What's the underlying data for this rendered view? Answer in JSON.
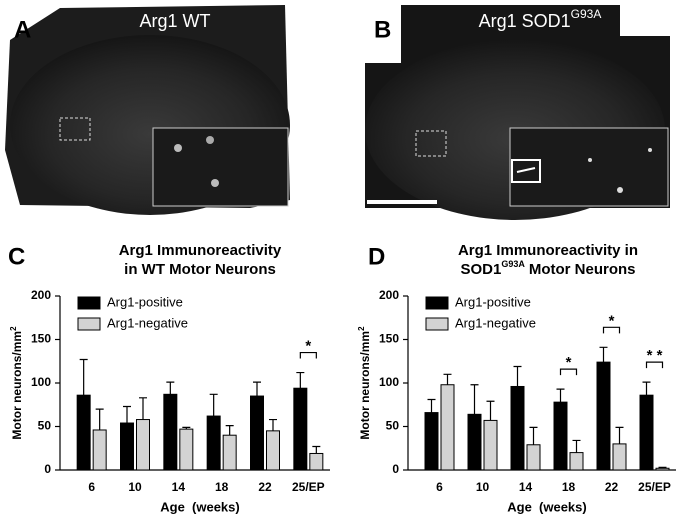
{
  "images": [
    {
      "label": "A",
      "caption": "Arg1 WT"
    },
    {
      "label": "B",
      "caption": "Arg1 SOD1",
      "caption_sup": "G93A"
    }
  ],
  "chart_data": [
    {
      "type": "bar",
      "panel": "C",
      "title": [
        [
          "Arg1 Immunoreactivity"
        ],
        [
          "in WT Motor Neurons"
        ]
      ],
      "xlabel": "Age  (weeks)",
      "ylabel": "Motor neurons/mm",
      "ylabel_sup": "2",
      "categories": [
        "6",
        "10",
        "14",
        "18",
        "22",
        "25/EP"
      ],
      "series": [
        {
          "name": "Arg1-positive",
          "color": "#000000",
          "values": [
            86,
            54,
            87,
            62,
            85,
            94
          ],
          "errors": [
            41,
            19,
            14,
            25,
            16,
            18
          ]
        },
        {
          "name": "Arg1-negative",
          "color": "#d3d3d3",
          "values": [
            46,
            58,
            47,
            40,
            45,
            19
          ],
          "errors": [
            24,
            25,
            2,
            11,
            13,
            8
          ]
        }
      ],
      "ylim": [
        0,
        200
      ],
      "yticks": [
        0,
        50,
        100,
        150,
        200
      ],
      "legend": "upper left",
      "annotations": [
        {
          "category": "25/EP",
          "text": "*"
        }
      ]
    },
    {
      "type": "bar",
      "panel": "D",
      "title": [
        [
          "Arg1 Immunoreactivity in"
        ],
        [
          "SOD1",
          {
            "text": "G93A",
            "sup": true
          },
          "Motor Neurons"
        ]
      ],
      "xlabel": "Age  (weeks)",
      "ylabel": "Motor neurons/mm",
      "ylabel_sup": "2",
      "categories": [
        "6",
        "10",
        "14",
        "18",
        "22",
        "25/EP"
      ],
      "series": [
        {
          "name": "Arg1-positive",
          "color": "#000000",
          "values": [
            66,
            64,
            96,
            78,
            124,
            86
          ],
          "errors": [
            15,
            34,
            23,
            15,
            17,
            15
          ]
        },
        {
          "name": "Arg1-negative",
          "color": "#d3d3d3",
          "values": [
            98,
            57,
            29,
            20,
            30,
            2
          ],
          "errors": [
            12,
            22,
            20,
            14,
            19,
            1
          ]
        }
      ],
      "ylim": [
        0,
        200
      ],
      "yticks": [
        0,
        50,
        100,
        150,
        200
      ],
      "legend": "upper left",
      "annotations": [
        {
          "category": "18",
          "text": "*"
        },
        {
          "category": "22",
          "text": "*"
        },
        {
          "category": "25/EP",
          "text": "* *"
        }
      ]
    }
  ]
}
